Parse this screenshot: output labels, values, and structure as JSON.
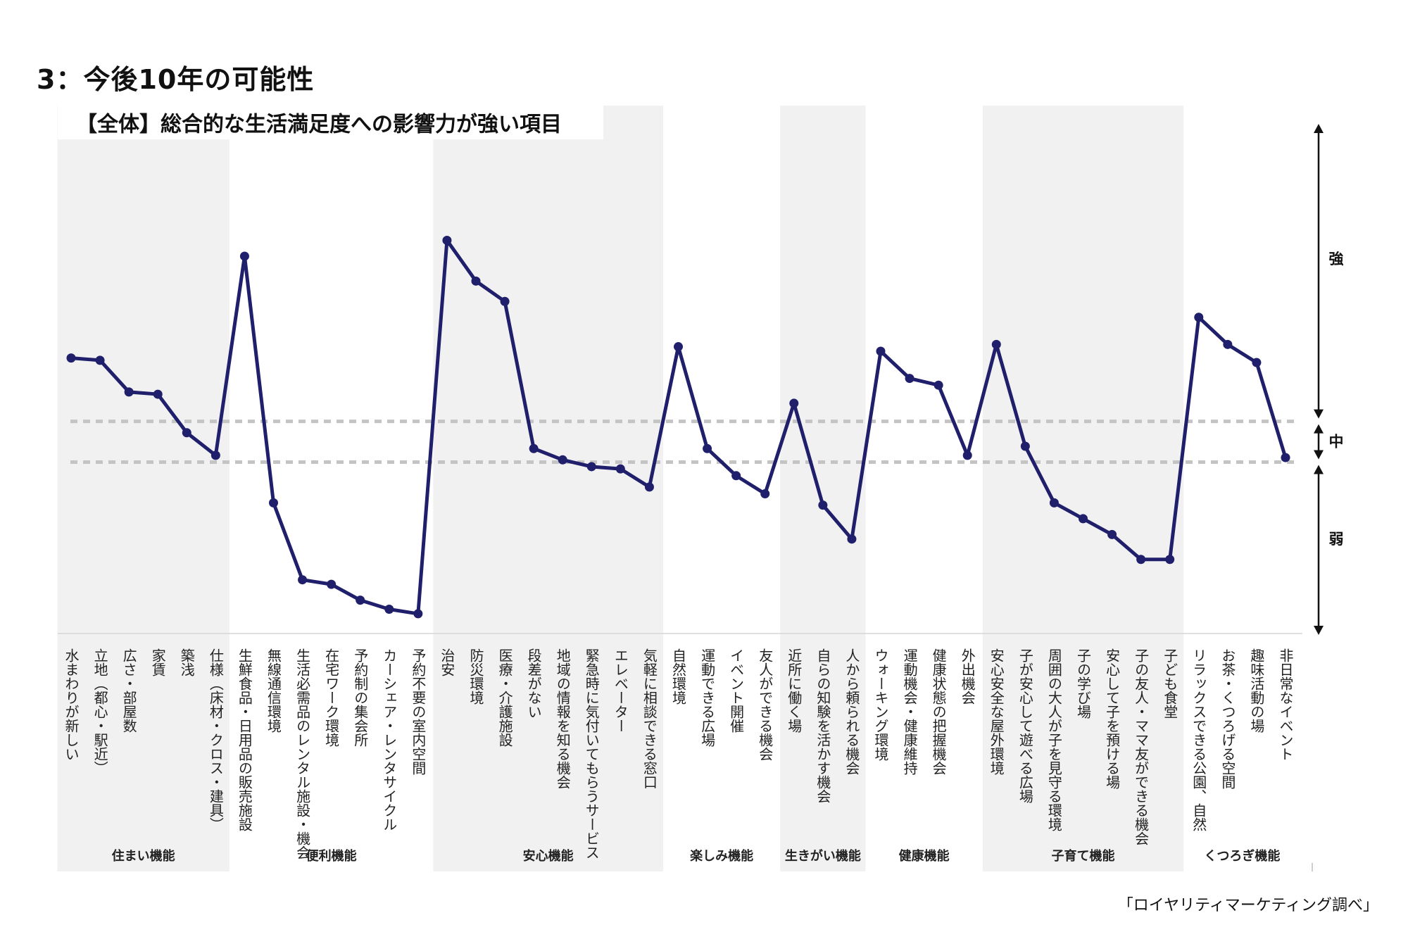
{
  "title": "3：今後10年の可能性",
  "source": "「ロイヤリティマーケティング調べ」",
  "colors": {
    "line": "#1f1f6b",
    "band": "#f1f1f1",
    "threshold": "#c4c4c4",
    "axis": "#111111"
  },
  "chart_data": {
    "type": "line",
    "title": "【全体】総合的な生活満足度への影響力が強い項目",
    "grid": false,
    "ylim": [
      0,
      100
    ],
    "levels": {
      "strong": "強",
      "mid": "中",
      "weak": "弱"
    },
    "thresholds": [
      45,
      36
    ],
    "categories": [
      "水まわりが新しい",
      "立地（都心・駅近）",
      "広さ・部屋数",
      "家賃",
      "築浅",
      "仕様（床材・クロス・建具）",
      "生鮮食品・日用品の販売施設",
      "無線通信環境",
      "生活必需品のレンタル施設・機会",
      "在宅ワーク環境",
      "予約制の集会所",
      "カーシェア・レンタサイクル",
      "予約不要の室内空間",
      "治安",
      "防災環境",
      "医療・介護施設",
      "段差がない",
      "地域の情報を知る機会",
      "緊急時に気付いてもらうサービス",
      "エレベーター",
      "気軽に相談できる窓口",
      "自然環境",
      "運動できる広場",
      "イベント開催",
      "友人ができる機会",
      "近所に働く場",
      "自らの知験を活かす機会",
      "人から頼られる機会",
      "ウォーキング環境",
      "運動機会・健康維持",
      "健康状態の把握機会",
      "外出機会",
      "安心安全な屋外環境",
      "子が安心して遊べる広場",
      "周囲の大人が子を見守る環境",
      "子の学び場",
      "安心して子を預ける場",
      "子の友人・ママ友ができる機会",
      "子ども食堂",
      "リラックスできる公園、自然",
      "お茶・くつろげる空間",
      "趣味活動の場",
      "非日常なイベント"
    ],
    "values": [
      59,
      58.5,
      51.5,
      51,
      42.5,
      37.5,
      81.5,
      27,
      10,
      9,
      5.5,
      3.5,
      2.5,
      85,
      76,
      71.5,
      39,
      36.5,
      35,
      34.5,
      30.5,
      61.5,
      39,
      33,
      29,
      49,
      26.5,
      19,
      60.5,
      54.5,
      53,
      37.5,
      62,
      39.5,
      27,
      23.5,
      20,
      14.5,
      14.5,
      68,
      62,
      58,
      37
    ],
    "groups": [
      {
        "label": "住まい機能",
        "start": 0,
        "end": 5,
        "shaded": true
      },
      {
        "label": "便利機能",
        "start": 6,
        "end": 12,
        "shaded": false
      },
      {
        "label": "安心機能",
        "start": 13,
        "end": 20,
        "shaded": true
      },
      {
        "label": "楽しみ機能",
        "start": 21,
        "end": 24,
        "shaded": false
      },
      {
        "label": "生きがい機能",
        "start": 25,
        "end": 27,
        "shaded": true
      },
      {
        "label": "健康機能",
        "start": 28,
        "end": 31,
        "shaded": false
      },
      {
        "label": "子育て機能",
        "start": 32,
        "end": 38,
        "shaded": true
      },
      {
        "label": "くつろぎ機能",
        "start": 39,
        "end": 42,
        "shaded": false
      }
    ]
  }
}
